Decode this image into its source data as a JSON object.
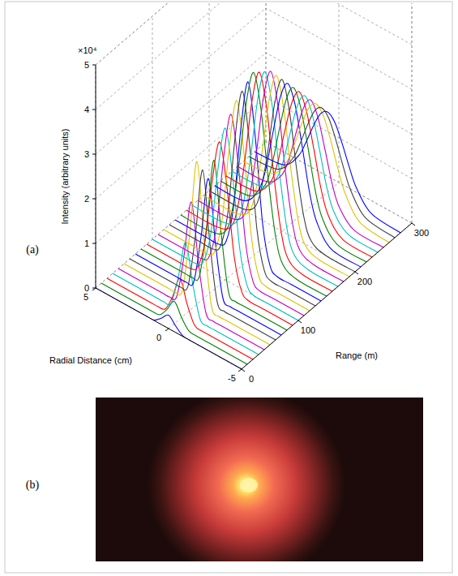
{
  "panels": [
    {
      "label": "(a)"
    },
    {
      "label": "(b)"
    }
  ],
  "chart_data": {
    "type": "waterfall",
    "xlabel": "Range (m)",
    "ylabel": "Radial Distance (cm)",
    "zlabel": "Intensity (arbitrary units)",
    "z_multiplier": "×10⁴",
    "xlim": [
      0,
      300
    ],
    "xticks": [
      0,
      100,
      200,
      300
    ],
    "ylim": [
      -5,
      5
    ],
    "yticks": [
      -5,
      0,
      5
    ],
    "zlim": [
      0,
      5
    ],
    "zticks": [
      0,
      1,
      2,
      3,
      4,
      5
    ],
    "grid": true,
    "line_style": "solid",
    "y": [
      -5,
      -3,
      -2,
      -1.5,
      -1,
      -0.5,
      0,
      0.5,
      1,
      1.5,
      2,
      3,
      5
    ],
    "series": [
      {
        "x": 0,
        "color": "#0000ff",
        "values": [
          0,
          0,
          0,
          0,
          0.01,
          0.14,
          0.3,
          0.14,
          0.01,
          0,
          0,
          0,
          0
        ]
      },
      {
        "x": 10,
        "color": "#008000",
        "values": [
          0,
          0,
          0,
          0,
          0.02,
          0.23,
          0.5,
          0.23,
          0.02,
          0,
          0,
          0,
          0
        ]
      },
      {
        "x": 20,
        "color": "#ff0000",
        "values": [
          0,
          0,
          0,
          0,
          0.04,
          0.41,
          0.9,
          0.41,
          0.04,
          0,
          0,
          0,
          0
        ]
      },
      {
        "x": 30,
        "color": "#00bfbf",
        "values": [
          0,
          0,
          0,
          0,
          0.06,
          0.74,
          1.6,
          0.74,
          0.06,
          0,
          0,
          0,
          0
        ]
      },
      {
        "x": 40,
        "color": "#bf00bf",
        "values": [
          0,
          0,
          0,
          0,
          0.1,
          1.1,
          2.4,
          1.1,
          0.1,
          0,
          0,
          0,
          0
        ]
      },
      {
        "x": 50,
        "color": "#e0c000",
        "values": [
          0,
          0,
          0,
          0,
          0.13,
          1.47,
          3.2,
          1.47,
          0.13,
          0,
          0,
          0,
          0
        ]
      },
      {
        "x": 60,
        "color": "#3f3f3f",
        "values": [
          0,
          0,
          0,
          0,
          0.12,
          1.33,
          2.9,
          1.33,
          0.12,
          0,
          0,
          0,
          0
        ]
      },
      {
        "x": 70,
        "color": "#0000ff",
        "values": [
          0,
          0,
          0,
          0,
          0.1,
          1.2,
          2.6,
          1.2,
          0.1,
          0,
          0,
          0,
          0
        ]
      },
      {
        "x": 80,
        "color": "#008000",
        "values": [
          0,
          0,
          0,
          0,
          0.12,
          1.33,
          2.9,
          1.33,
          0.12,
          0,
          0,
          0,
          0
        ]
      },
      {
        "x": 90,
        "color": "#ff0000",
        "values": [
          0,
          0,
          0,
          0.13,
          0.8,
          2.27,
          3.2,
          2.27,
          0.8,
          0.13,
          0,
          0,
          0
        ]
      },
      {
        "x": 100,
        "color": "#00bfbf",
        "values": [
          0,
          0,
          0,
          0.14,
          0.85,
          2.41,
          3.4,
          2.41,
          0.85,
          0.14,
          0,
          0,
          0
        ]
      },
      {
        "x": 110,
        "color": "#bf00bf",
        "values": [
          0,
          0,
          0,
          0.14,
          0.9,
          2.56,
          3.6,
          2.56,
          0.9,
          0.14,
          0,
          0,
          0
        ]
      },
      {
        "x": 120,
        "color": "#e0c000",
        "values": [
          0,
          0,
          0,
          0.15,
          0.95,
          2.7,
          3.8,
          2.7,
          0.95,
          0.15,
          0,
          0,
          0
        ]
      },
      {
        "x": 130,
        "color": "#3f3f3f",
        "values": [
          0,
          0,
          0,
          0.16,
          0.98,
          2.77,
          3.9,
          2.77,
          0.98,
          0.16,
          0,
          0,
          0
        ]
      },
      {
        "x": 140,
        "color": "#0000ff",
        "values": [
          0,
          0,
          0,
          0.16,
          1.0,
          2.84,
          4.0,
          2.84,
          1.0,
          0.16,
          0,
          0,
          0
        ]
      },
      {
        "x": 150,
        "color": "#008000",
        "values": [
          0,
          0,
          0.16,
          0.7,
          1.89,
          3.36,
          4.1,
          3.36,
          1.89,
          0.7,
          0.16,
          0,
          0
        ]
      },
      {
        "x": 160,
        "color": "#ff0000",
        "values": [
          0,
          0,
          0.16,
          0.68,
          1.84,
          3.28,
          4.0,
          3.28,
          1.84,
          0.68,
          0.16,
          0,
          0
        ]
      },
      {
        "x": 170,
        "color": "#00bfbf",
        "values": [
          0,
          0,
          0.16,
          0.66,
          1.79,
          3.2,
          3.9,
          3.2,
          1.79,
          0.66,
          0.16,
          0,
          0
        ]
      },
      {
        "x": 180,
        "color": "#bf00bf",
        "values": [
          0,
          0,
          0.15,
          0.65,
          1.75,
          3.12,
          3.8,
          3.12,
          1.75,
          0.65,
          0.15,
          0,
          0
        ]
      },
      {
        "x": 190,
        "color": "#e0c000",
        "values": [
          0,
          0,
          0.14,
          0.61,
          1.66,
          2.95,
          3.6,
          2.95,
          1.66,
          0.61,
          0.14,
          0,
          0
        ]
      },
      {
        "x": 200,
        "color": "#3f3f3f",
        "values": [
          0,
          0,
          0.14,
          0.58,
          1.56,
          2.79,
          3.4,
          2.79,
          1.56,
          0.58,
          0.14,
          0,
          0
        ]
      },
      {
        "x": 210,
        "color": "#0000ff",
        "values": [
          0,
          0.03,
          0.45,
          1.02,
          1.95,
          2.82,
          3.2,
          2.82,
          1.95,
          1.02,
          0.45,
          0.03,
          0
        ]
      },
      {
        "x": 220,
        "color": "#008000",
        "values": [
          0,
          0.03,
          0.42,
          0.96,
          1.83,
          2.64,
          3.0,
          2.64,
          1.83,
          0.96,
          0.42,
          0.03,
          0
        ]
      },
      {
        "x": 230,
        "color": "#ff0000",
        "values": [
          0,
          0.03,
          0.39,
          0.9,
          1.71,
          2.46,
          2.8,
          2.46,
          1.71,
          0.9,
          0.39,
          0.03,
          0
        ]
      },
      {
        "x": 240,
        "color": "#00bfbf",
        "values": [
          0,
          0.03,
          0.36,
          0.83,
          1.59,
          2.29,
          2.6,
          2.29,
          1.59,
          0.83,
          0.36,
          0.03,
          0
        ]
      },
      {
        "x": 250,
        "color": "#bf00bf",
        "values": [
          0,
          0.02,
          0.34,
          0.77,
          1.46,
          2.11,
          2.4,
          2.11,
          1.46,
          0.77,
          0.34,
          0.02,
          0
        ]
      },
      {
        "x": 260,
        "color": "#e0c000",
        "values": [
          0,
          0.09,
          0.55,
          1.01,
          1.56,
          2.02,
          2.2,
          2.02,
          1.56,
          1.01,
          0.55,
          0.09,
          0
        ]
      },
      {
        "x": 270,
        "color": "#3f3f3f",
        "values": [
          0,
          0.08,
          0.5,
          0.92,
          1.42,
          1.84,
          2.0,
          1.84,
          1.42,
          0.92,
          0.5,
          0.08,
          0
        ]
      },
      {
        "x": 280,
        "color": "#0000ff",
        "values": [
          0,
          0.07,
          0.45,
          0.83,
          1.28,
          1.66,
          1.8,
          1.66,
          1.28,
          0.83,
          0.45,
          0.07,
          0
        ]
      }
    ]
  }
}
